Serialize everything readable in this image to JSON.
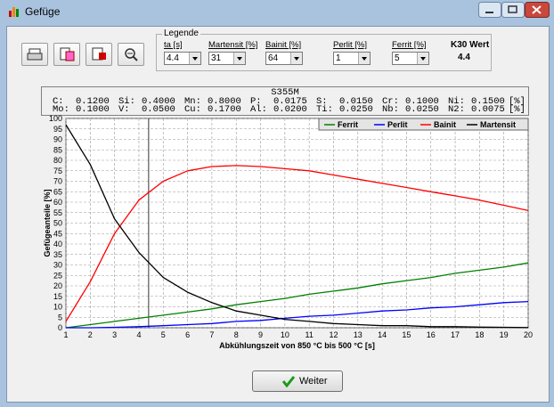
{
  "window": {
    "title": "Gefüge"
  },
  "legend": {
    "title": "Legende",
    "items": [
      {
        "label": "ta [s]",
        "value": 4.4
      },
      {
        "label": "Martensit [%]",
        "value": 31
      },
      {
        "label": "Bainit [%]",
        "value": 64
      },
      {
        "label": "Perlit [%]",
        "value": 1
      },
      {
        "label": "Ferrit [%]",
        "value": 5
      }
    ],
    "k30": {
      "label": "K30 Wert",
      "value": 4.4
    }
  },
  "composition": {
    "title": "S355M",
    "rows": [
      {
        "cells": [
          [
            "C:",
            "0.1200"
          ],
          [
            "Si:",
            "0.4000"
          ],
          [
            "Mn:",
            "0.8000"
          ],
          [
            "P:",
            "0.0175"
          ],
          [
            "S:",
            "0.0150"
          ],
          [
            "Cr:",
            "0.1000"
          ],
          [
            "Ni:",
            "0.1500"
          ]
        ],
        "unit": "[%]"
      },
      {
        "cells": [
          [
            "Mo:",
            "0.1000"
          ],
          [
            "V:",
            "0.0500"
          ],
          [
            "Cu:",
            "0.1700"
          ],
          [
            "Al:",
            "0.0200"
          ],
          [
            "Ti:",
            "0.0250"
          ],
          [
            "Nb:",
            "0.0250"
          ],
          [
            "N2:",
            "0.0075"
          ]
        ],
        "unit": "[%]"
      }
    ]
  },
  "chart_data": {
    "type": "line",
    "x_label": "Abkühlungszeit von 850 °C bis 500 °C  [s]",
    "y_label": "Gefügeanteile [%]",
    "x": [
      1,
      2,
      3,
      4,
      5,
      6,
      7,
      8,
      9,
      10,
      11,
      12,
      13,
      14,
      15,
      16,
      17,
      18,
      19,
      20
    ],
    "xlim": [
      1,
      20
    ],
    "xticks": [
      1,
      2,
      3,
      4,
      5,
      6,
      7,
      8,
      9,
      10,
      11,
      12,
      13,
      14,
      15,
      16,
      17,
      18,
      19,
      20
    ],
    "ylim": [
      0,
      100
    ],
    "yticks": [
      0,
      5,
      10,
      15,
      20,
      25,
      30,
      35,
      40,
      45,
      50,
      55,
      60,
      65,
      70,
      75,
      80,
      85,
      90,
      95,
      100
    ],
    "grid": true,
    "legend_position": "top-right",
    "series": [
      {
        "name": "Ferrit",
        "color": "#008000",
        "values": [
          0,
          1.5,
          3,
          4.5,
          6,
          7.5,
          9,
          11,
          12.5,
          14,
          16,
          17.5,
          19,
          21,
          22.5,
          24,
          26,
          27.5,
          29,
          31
        ]
      },
      {
        "name": "Perlit",
        "color": "#0000ff",
        "values": [
          0,
          0,
          0.2,
          0.5,
          1,
          1.5,
          2,
          3,
          3.5,
          4.5,
          5.5,
          6,
          7,
          8,
          8.5,
          9.5,
          10,
          11,
          12,
          12.5
        ]
      },
      {
        "name": "Bainit",
        "color": "#ff0000",
        "values": [
          3,
          22,
          45,
          61,
          70,
          75,
          77,
          77.5,
          77,
          76,
          75,
          73,
          71,
          69,
          67,
          65,
          63,
          61,
          58.5,
          56
        ]
      },
      {
        "name": "Martensit",
        "color": "#000000",
        "values": [
          97,
          78,
          52,
          36,
          24,
          17,
          12,
          8,
          6,
          4,
          3,
          2,
          1.5,
          1,
          1,
          0.5,
          0.5,
          0.3,
          0.2,
          0.1
        ]
      }
    ]
  },
  "button": {
    "label": "Weiter"
  }
}
